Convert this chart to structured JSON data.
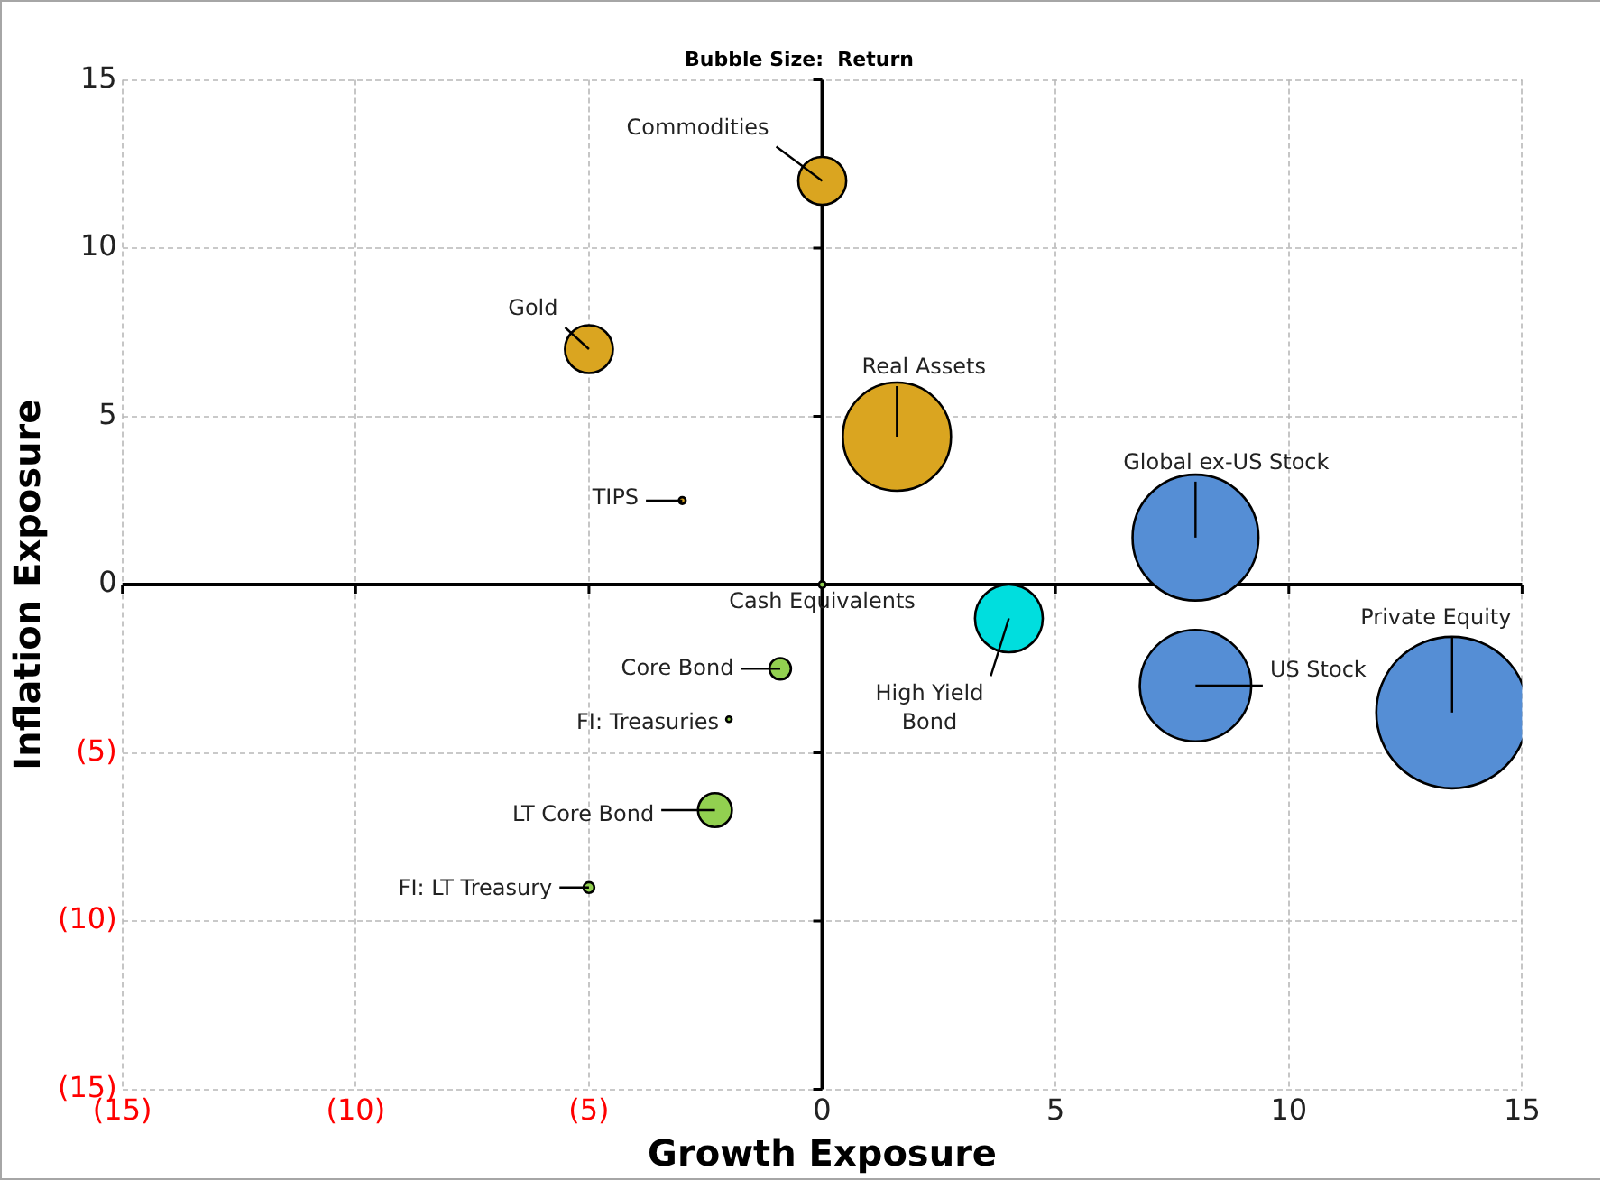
{
  "chart_data": {
    "type": "bubble",
    "subtitle": "Bubble Size:  Return",
    "xlabel": "Growth Exposure",
    "ylabel": "Inflation Exposure",
    "xlim": [
      -15,
      15
    ],
    "ylim": [
      -15,
      15
    ],
    "xticks": [
      {
        "value": -15,
        "label": "(15)"
      },
      {
        "value": -10,
        "label": "(10)"
      },
      {
        "value": -5,
        "label": "(5)"
      },
      0,
      5,
      10,
      15
    ],
    "yticks": [
      {
        "value": -15,
        "label": "(15)"
      },
      {
        "value": -10,
        "label": "(10)"
      },
      {
        "value": -5,
        "label": "(5)"
      },
      0,
      5,
      10,
      15
    ],
    "grid": true,
    "legend": false,
    "series": [
      {
        "color": "#daa520",
        "x": [
          0,
          -5,
          -3,
          1.6
        ],
        "values": [
          12,
          7,
          2.5,
          4.4
        ],
        "sizes": [
          0.1,
          0.1,
          0.002,
          0.51
        ]
      },
      {
        "color": "#92d050",
        "x": [
          0,
          -0.9,
          -2,
          -2.3,
          -5
        ],
        "values": [
          0,
          -2.5,
          -4,
          -6.7,
          -9
        ],
        "sizes": [
          0.002,
          0.02,
          0.001,
          0.05,
          0.005
        ]
      },
      {
        "color": "#00dede",
        "x": [
          4
        ],
        "values": [
          -1
        ],
        "sizes": [
          0.2
        ]
      },
      {
        "color": "#558ed5",
        "x": [
          8,
          8,
          13.5
        ],
        "values": [
          1.4,
          -3,
          -3.8
        ],
        "sizes": [
          0.69,
          0.54,
          1
        ]
      }
    ],
    "annotations": [
      {
        "text": "Commodities",
        "x": 0,
        "y": 12
      },
      {
        "text": "Gold",
        "x": -5,
        "y": 7
      },
      {
        "text": "TIPS",
        "x": -3,
        "y": 2.5
      },
      {
        "text": "Real Assets",
        "x": 1.6,
        "y": 4.4
      },
      {
        "text": "Cash Equivalents",
        "x": 0,
        "y": 0
      },
      {
        "text": "Core Bond",
        "x": -0.9,
        "y": -2.5
      },
      {
        "text": "FI: Treasuries",
        "x": -2,
        "y": -4
      },
      {
        "text": "LT Core Bond",
        "x": -2.3,
        "y": -6.7
      },
      {
        "text": "FI: LT Treasury",
        "x": -5,
        "y": -9
      },
      {
        "text": "High Yield Bond",
        "x": 4,
        "y": -1
      },
      {
        "text": "Global ex-US Stock",
        "x": 8,
        "y": 1.4
      },
      {
        "text": "US Stock",
        "x": 8,
        "y": -3
      },
      {
        "text": "Private Equity",
        "x": 13.5,
        "y": -3.8
      }
    ]
  }
}
